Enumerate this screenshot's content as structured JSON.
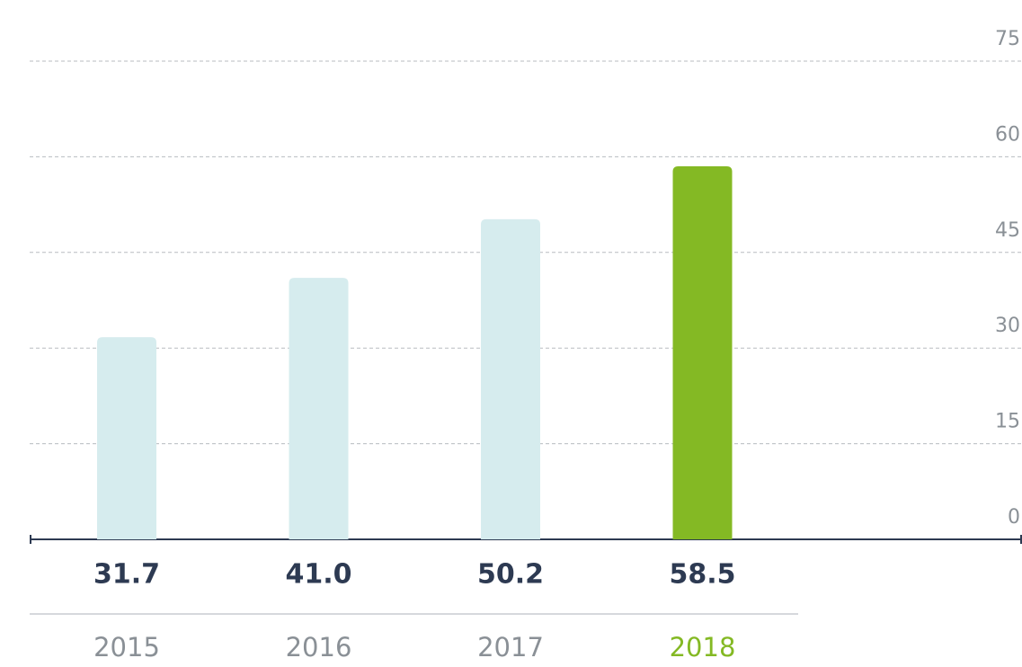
{
  "chart_data": {
    "type": "bar",
    "categories": [
      "2015",
      "2016",
      "2017",
      "2018"
    ],
    "values": [
      31.7,
      41.0,
      50.2,
      58.5
    ],
    "value_labels": [
      "31.7",
      "41.0",
      "50.2",
      "58.5"
    ],
    "colors": [
      "#d6ecee",
      "#d6ecee",
      "#d6ecee",
      "#84b924"
    ],
    "category_colors": [
      "#8a9096",
      "#8a9096",
      "#8a9096",
      "#84b924"
    ],
    "ylim": [
      0,
      75
    ],
    "yticks": [
      0,
      15,
      30,
      45,
      60,
      75
    ],
    "grid": true
  }
}
